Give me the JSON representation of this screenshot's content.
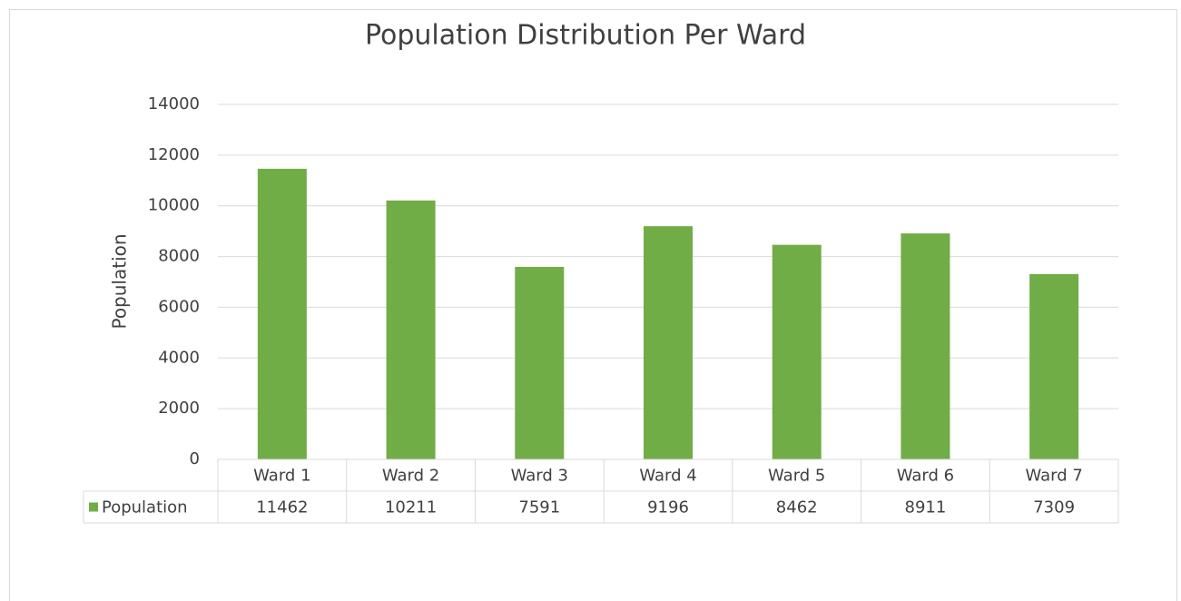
{
  "chart_data": {
    "type": "bar",
    "title": "Population Distribution Per Ward",
    "y_label": "Population",
    "categories": [
      "Ward 1",
      "Ward 2",
      "Ward 3",
      "Ward 4",
      "Ward 5",
      "Ward 6",
      "Ward 7"
    ],
    "series": [
      {
        "name": "Population",
        "color": "#70ad47",
        "values": [
          11462,
          10211,
          7591,
          9196,
          8462,
          8911,
          7309
        ]
      }
    ],
    "ylim": [
      0,
      14000
    ],
    "yticks": [
      0,
      2000,
      4000,
      6000,
      8000,
      10000,
      12000,
      14000
    ],
    "grid": true,
    "data_table": true
  }
}
